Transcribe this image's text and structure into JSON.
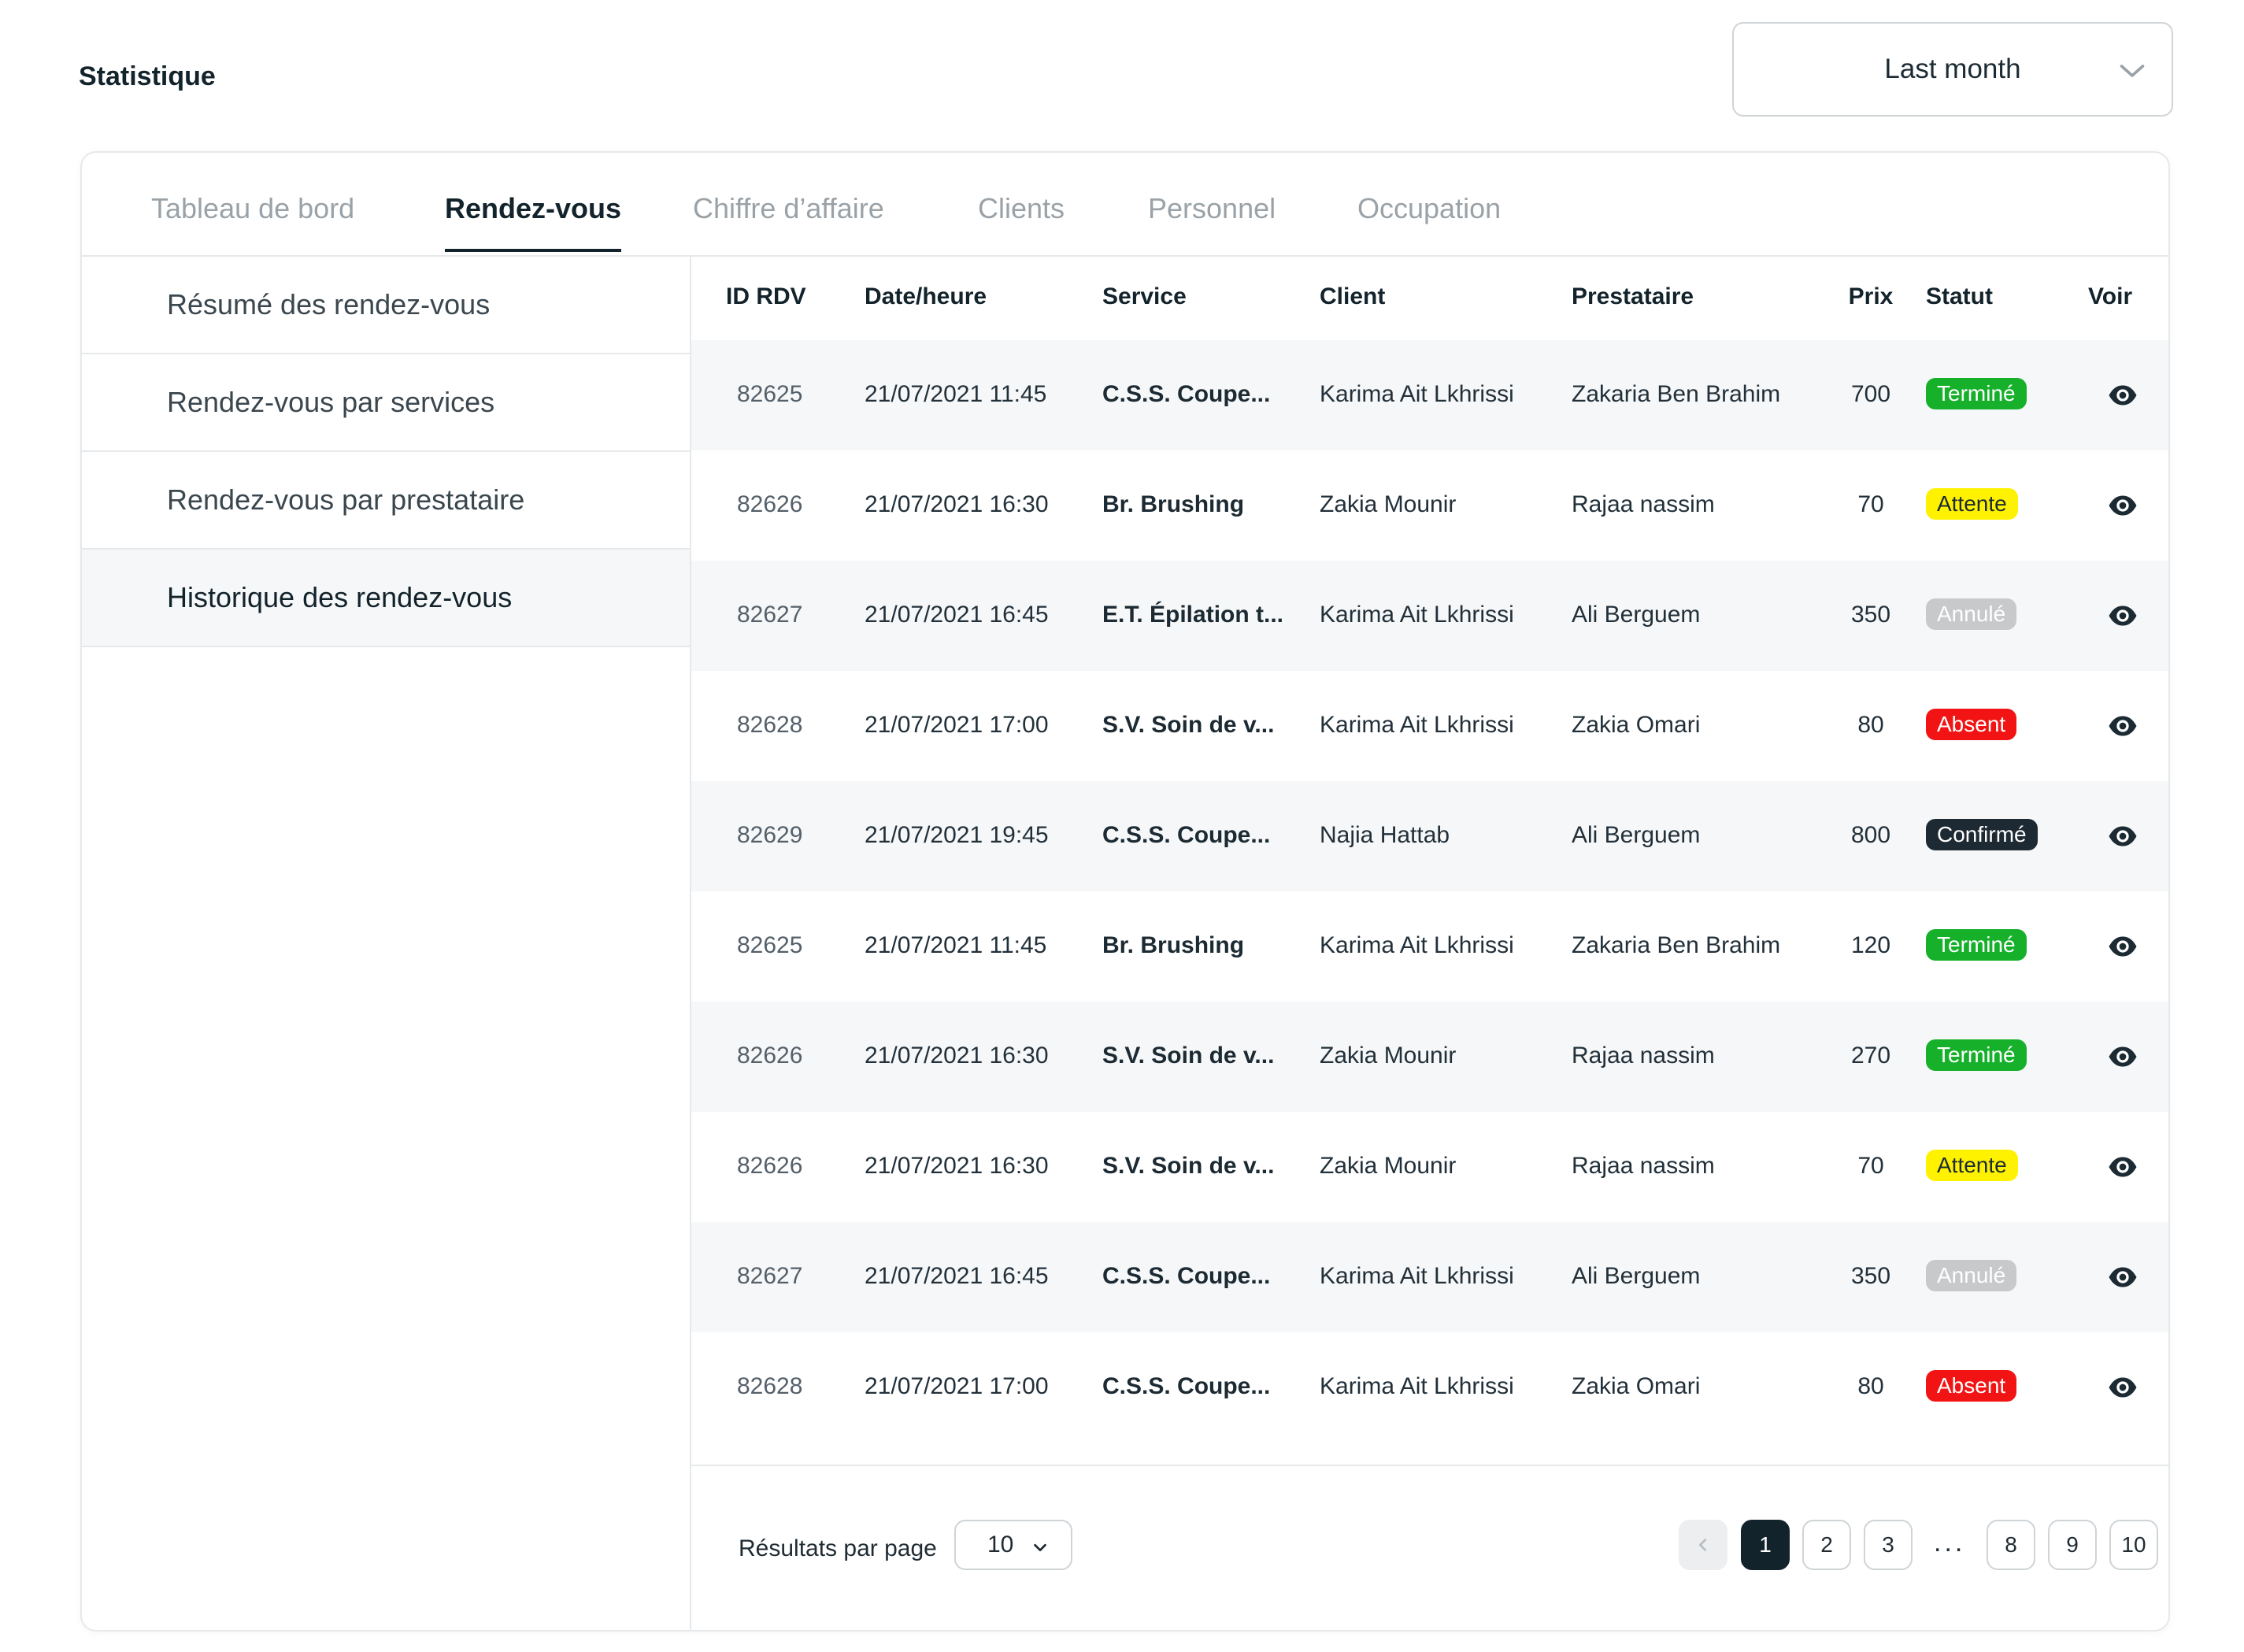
{
  "page": {
    "title": "Statistique"
  },
  "period": {
    "value": "Last month"
  },
  "tabs": [
    {
      "label": "Tableau de bord"
    },
    {
      "label": "Rendez-vous"
    },
    {
      "label": "Chiffre d’affaire"
    },
    {
      "label": "Clients"
    },
    {
      "label": "Personnel"
    },
    {
      "label": "Occupation"
    }
  ],
  "sidebar": {
    "items": [
      {
        "label": "Résumé des rendez-vous"
      },
      {
        "label": "Rendez-vous par services"
      },
      {
        "label": "Rendez-vous par prestataire"
      },
      {
        "label": "Historique des rendez-vous"
      }
    ]
  },
  "table": {
    "headers": {
      "id": "ID RDV",
      "date": "Date/heure",
      "service": "Service",
      "client": "Client",
      "prestataire": "Prestataire",
      "prix": "Prix",
      "statut": "Statut",
      "voir": "Voir"
    },
    "rows": [
      {
        "id": "82625",
        "date": "21/07/2021  11:45",
        "service": "C.S.S. Coupe...",
        "client": "Karima Ait Lkhrissi",
        "prestataire": "Zakaria Ben Brahim",
        "prix": "700",
        "statut": "Terminé",
        "status_color": "#16b02b"
      },
      {
        "id": "82626",
        "date": "21/07/2021  16:30",
        "service": "Br. Brushing",
        "client": "Zakia Mounir",
        "prestataire": "Rajaa nassim",
        "prix": "70",
        "statut": "Attente",
        "status_color": "#fff200"
      },
      {
        "id": "82627",
        "date": "21/07/2021  16:45",
        "service": "E.T. Épilation t...",
        "client": "Karima Ait Lkhrissi",
        "prestataire": "Ali Berguem",
        "prix": "350",
        "statut": "Annulé",
        "status_color": "#c7c9cb"
      },
      {
        "id": "82628",
        "date": "21/07/2021  17:00",
        "service": "S.V. Soin de v...",
        "client": "Karima Ait Lkhrissi",
        "prestataire": "Zakia Omari",
        "prix": "80",
        "statut": "Absent",
        "status_color": "#f21414"
      },
      {
        "id": "82629",
        "date": "21/07/2021  19:45",
        "service": "C.S.S. Coupe...",
        "client": "Najia Hattab",
        "prestataire": "Ali Berguem",
        "prix": "800",
        "statut": "Confirmé",
        "status_color": "#1d2a33"
      },
      {
        "id": "82625",
        "date": "21/07/2021  11:45",
        "service": "Br. Brushing",
        "client": "Karima Ait Lkhrissi",
        "prestataire": "Zakaria Ben Brahim",
        "prix": "120",
        "statut": "Terminé",
        "status_color": "#16b02b"
      },
      {
        "id": "82626",
        "date": "21/07/2021  16:30",
        "service": "S.V. Soin de v...",
        "client": "Zakia Mounir",
        "prestataire": "Rajaa nassim",
        "prix": "270",
        "statut": "Terminé",
        "status_color": "#16b02b"
      },
      {
        "id": "82626",
        "date": "21/07/2021  16:30",
        "service": "S.V. Soin de v...",
        "client": "Zakia Mounir",
        "prestataire": "Rajaa nassim",
        "prix": "70",
        "statut": "Attente",
        "status_color": "#fff200"
      },
      {
        "id": "82627",
        "date": "21/07/2021  16:45",
        "service": "C.S.S. Coupe...",
        "client": "Karima Ait Lkhrissi",
        "prestataire": "Ali Berguem",
        "prix": "350",
        "statut": "Annulé",
        "status_color": "#c7c9cb"
      },
      {
        "id": "82628",
        "date": "21/07/2021  17:00",
        "service": "C.S.S. Coupe...",
        "client": "Karima Ait Lkhrissi",
        "prestataire": "Zakia Omari",
        "prix": "80",
        "statut": "Absent",
        "status_color": "#f21414"
      }
    ],
    "view_icon": "eye-icon"
  },
  "footer": {
    "rpp_label": "Résultats par page",
    "rpp_value": "10",
    "pagination": {
      "prev_icon": "chevron-left-icon",
      "pages_before": [
        "1",
        "2",
        "3"
      ],
      "ellipsis": "...",
      "pages_after": [
        "8",
        "9",
        "10"
      ],
      "current": "1",
      "next_icon": "chevron-right-icon"
    }
  },
  "colors": {
    "primary_dark": "#13232c",
    "accent_green": "#16b02b",
    "accent_yellow": "#fff200",
    "accent_red": "#f21414",
    "muted_grey": "#c7c9cb"
  }
}
